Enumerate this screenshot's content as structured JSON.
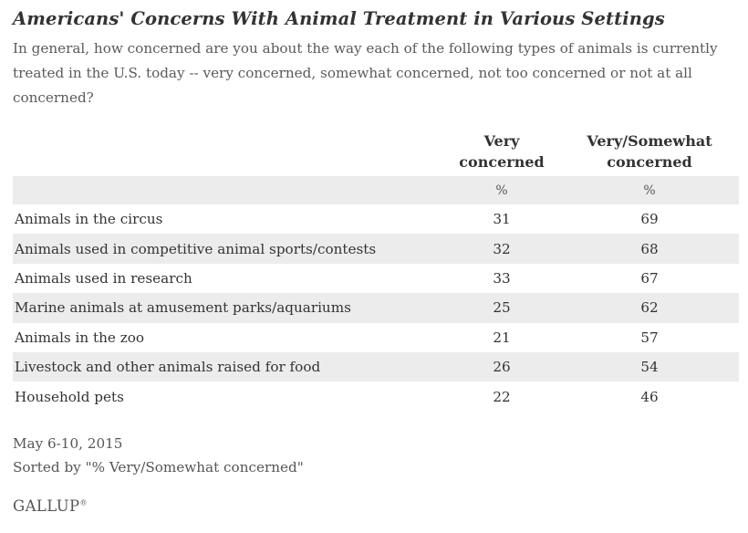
{
  "chart_data": {
    "type": "table",
    "title": "Americans' Concerns With Animal Treatment in Various Settings",
    "subtitle": "In general, how concerned are you about the way each of the following types of animals is currently treated in the U.S. today -- very concerned, somewhat concerned, not too concerned or not at all concerned?",
    "columns": [
      {
        "header_line1": "Very",
        "header_line2": "concerned",
        "unit": "%"
      },
      {
        "header_line1": "Very/Somewhat",
        "header_line2": "concerned",
        "unit": "%"
      }
    ],
    "rows": [
      {
        "label": "Animals in the circus",
        "very": "31",
        "very_somewhat": "69"
      },
      {
        "label": "Animals used in competitive animal sports/contests",
        "very": "32",
        "very_somewhat": "68"
      },
      {
        "label": "Animals used in research",
        "very": "33",
        "very_somewhat": "67"
      },
      {
        "label": "Marine animals at amusement parks/aquariums",
        "very": "25",
        "very_somewhat": "62"
      },
      {
        "label": "Animals in the zoo",
        "very": "21",
        "very_somewhat": "57"
      },
      {
        "label": "Livestock and other animals raised for food",
        "very": "26",
        "very_somewhat": "54"
      },
      {
        "label": "Household pets",
        "very": "22",
        "very_somewhat": "46"
      }
    ]
  },
  "footer": {
    "date": "May 6-10, 2015",
    "sort_note": "Sorted by \"% Very/Somewhat concerned\""
  },
  "brand": {
    "logo_text": "GALLUP",
    "logo_mark": "®"
  },
  "colors": {
    "stripe": "#ececec",
    "text": "#333333"
  }
}
